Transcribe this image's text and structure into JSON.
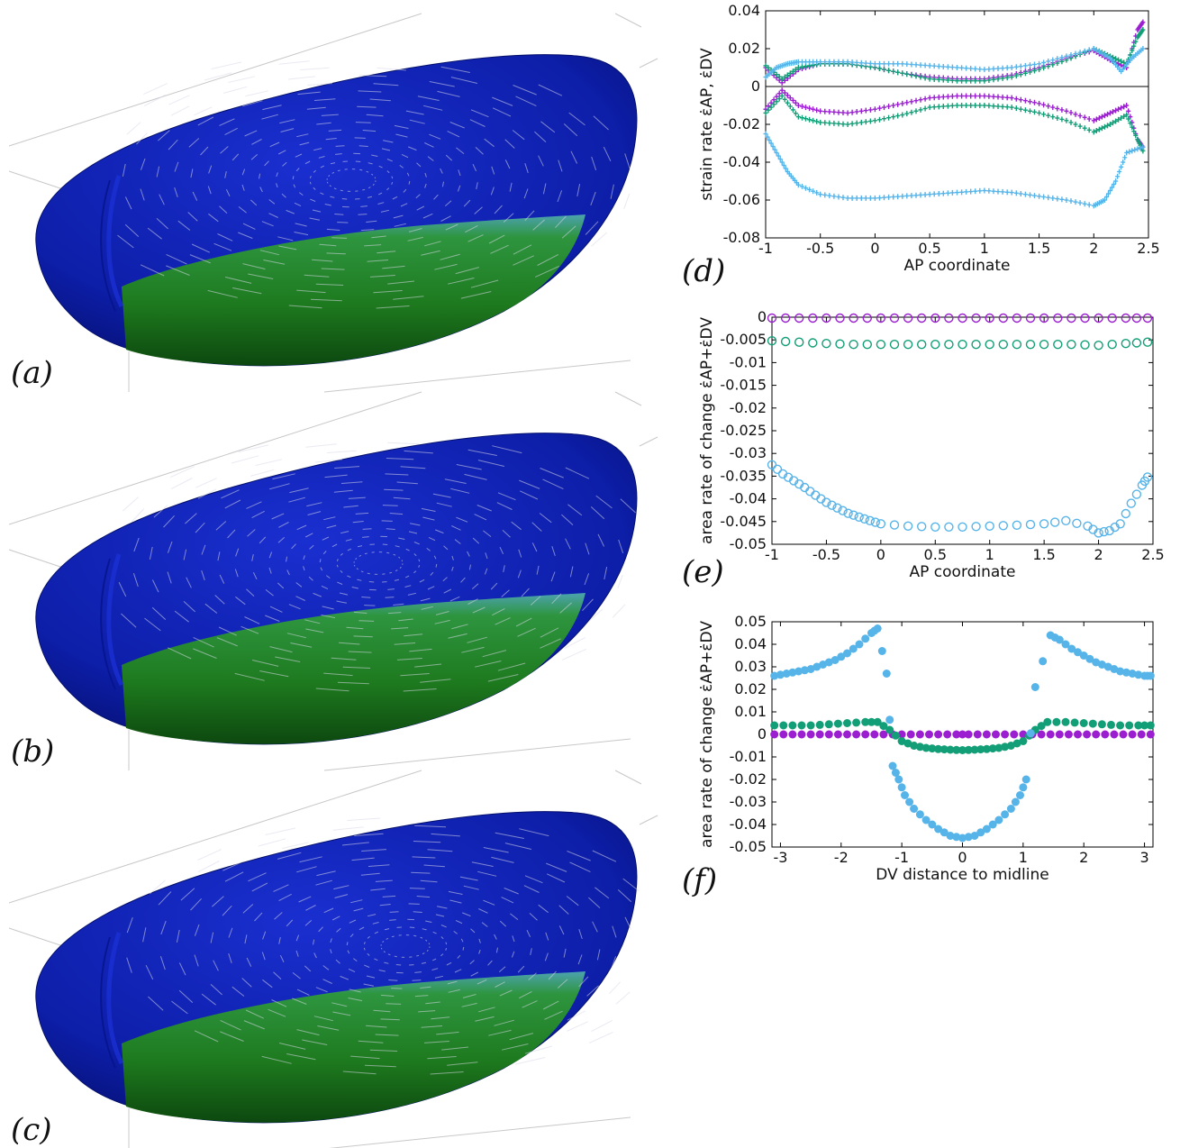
{
  "figure": {
    "panels_3d": [
      {
        "letter": "(a)"
      },
      {
        "letter": "(b)"
      },
      {
        "letter": "(c)"
      }
    ],
    "colors": {
      "dorsal_blue": "#0a1ea8",
      "ventral_green": "#1c7a14",
      "flow_lines": "#d8d8e8",
      "purple": "#9b1fd0",
      "green": "#129e76",
      "skyblue": "#56b4e9"
    }
  },
  "chart_data": [
    {
      "panel": "(d)",
      "type": "scatter",
      "marker": "cross-with-errorbar",
      "xlabel": "AP coordinate",
      "ylabel": "strain rate ε̇AP, ε̇DV",
      "xlim": [
        -1,
        2.5
      ],
      "ylim": [
        -0.08,
        0.04
      ],
      "xticks": [
        -1,
        -0.5,
        0,
        0.5,
        1,
        1.5,
        2,
        2.5
      ],
      "xtick_labels": [
        "-1",
        "-0.5",
        "0",
        "0.5",
        "1",
        "1.5",
        "2",
        "2.5"
      ],
      "yticks": [
        -0.08,
        -0.06,
        -0.04,
        -0.02,
        0,
        0.02,
        0.04
      ],
      "ytick_labels": [
        "-0.08",
        "-0.06",
        "-0.04",
        "-0.02",
        "0",
        "0.02",
        "0.04"
      ],
      "zero_line": true,
      "series": [
        {
          "color": "#9b1fd0",
          "x": [
            -1,
            -0.85,
            -0.7,
            -0.5,
            -0.25,
            0,
            0.25,
            0.5,
            0.75,
            1,
            1.25,
            1.5,
            1.75,
            2,
            2.15,
            2.3,
            2.4,
            2.45
          ],
          "y": [
            0.01,
            0.002,
            0.009,
            0.012,
            0.012,
            0.01,
            0.007,
            0.005,
            0.004,
            0.004,
            0.006,
            0.01,
            0.015,
            0.019,
            0.014,
            0.01,
            0.03,
            0.034
          ]
        },
        {
          "color": "#9b1fd0",
          "x": [
            -1,
            -0.85,
            -0.7,
            -0.5,
            -0.25,
            0,
            0.25,
            0.5,
            0.75,
            1,
            1.25,
            1.5,
            1.75,
            2,
            2.15,
            2.3,
            2.4,
            2.45
          ],
          "y": [
            -0.012,
            -0.002,
            -0.01,
            -0.013,
            -0.014,
            -0.012,
            -0.009,
            -0.006,
            -0.005,
            -0.005,
            -0.006,
            -0.009,
            -0.013,
            -0.018,
            -0.014,
            -0.01,
            -0.028,
            -0.032
          ]
        },
        {
          "color": "#129e76",
          "x": [
            -1,
            -0.85,
            -0.7,
            -0.5,
            -0.25,
            0,
            0.25,
            0.5,
            0.75,
            1,
            1.25,
            1.5,
            1.75,
            2,
            2.15,
            2.3,
            2.4,
            2.45
          ],
          "y": [
            0.011,
            0.004,
            0.01,
            0.012,
            0.012,
            0.01,
            0.007,
            0.004,
            0.003,
            0.003,
            0.005,
            0.009,
            0.014,
            0.02,
            0.016,
            0.012,
            0.026,
            0.03
          ]
        },
        {
          "color": "#129e76",
          "x": [
            -1,
            -0.85,
            -0.7,
            -0.5,
            -0.25,
            0,
            0.25,
            0.5,
            0.75,
            1,
            1.25,
            1.5,
            1.75,
            2,
            2.15,
            2.3,
            2.4,
            2.45
          ],
          "y": [
            -0.014,
            -0.005,
            -0.016,
            -0.019,
            -0.02,
            -0.018,
            -0.015,
            -0.011,
            -0.01,
            -0.01,
            -0.011,
            -0.014,
            -0.018,
            -0.024,
            -0.02,
            -0.015,
            -0.028,
            -0.034
          ]
        },
        {
          "color": "#56b4e9",
          "x": [
            -1,
            -0.9,
            -0.8,
            -0.7,
            -0.5,
            -0.25,
            0,
            0.25,
            0.5,
            0.75,
            1,
            1.25,
            1.5,
            1.75,
            2,
            2.15,
            2.25,
            2.35,
            2.45
          ],
          "y": [
            0.005,
            0.01,
            0.012,
            0.013,
            0.013,
            0.013,
            0.012,
            0.012,
            0.011,
            0.01,
            0.009,
            0.01,
            0.012,
            0.016,
            0.02,
            0.015,
            0.008,
            0.015,
            0.02
          ]
        },
        {
          "color": "#56b4e9",
          "x": [
            -1,
            -0.9,
            -0.8,
            -0.7,
            -0.5,
            -0.25,
            0,
            0.25,
            0.5,
            0.75,
            1,
            1.25,
            1.5,
            1.75,
            2,
            2.1,
            2.2,
            2.3,
            2.45
          ],
          "y": [
            -0.025,
            -0.035,
            -0.045,
            -0.052,
            -0.057,
            -0.059,
            -0.059,
            -0.058,
            -0.057,
            -0.056,
            -0.055,
            -0.056,
            -0.058,
            -0.06,
            -0.063,
            -0.06,
            -0.05,
            -0.035,
            -0.032
          ]
        }
      ]
    },
    {
      "panel": "(e)",
      "type": "scatter",
      "marker": "open-circle",
      "xlabel": "AP coordinate",
      "ylabel": "area rate of change ε̇AP+ε̇DV",
      "xlim": [
        -1,
        2.5
      ],
      "ylim": [
        -0.05,
        0
      ],
      "xticks": [
        -1,
        -0.5,
        0,
        0.5,
        1,
        1.5,
        2,
        2.5
      ],
      "xtick_labels": [
        "-1",
        "-0.5",
        "0",
        "0.5",
        "1",
        "1.5",
        "2",
        "2.5"
      ],
      "yticks": [
        -0.05,
        -0.045,
        -0.04,
        -0.035,
        -0.03,
        -0.025,
        -0.02,
        -0.015,
        -0.01,
        -0.005,
        0
      ],
      "ytick_labels": [
        "-0.05",
        "-0.045",
        "-0.04",
        "-0.035",
        "-0.03",
        "-0.025",
        "-0.02",
        "-0.015",
        "-0.01",
        "-0.005",
        "0"
      ],
      "series": [
        {
          "color": "#9b1fd0",
          "x": [
            -1,
            -0.75,
            -0.5,
            -0.25,
            0,
            0.25,
            0.5,
            0.75,
            1,
            1.25,
            1.5,
            1.75,
            2,
            2.25,
            2.45
          ],
          "y": [
            -0.0002,
            -0.0002,
            -0.0002,
            -0.0002,
            -0.0002,
            -0.0002,
            -0.0002,
            -0.0002,
            -0.0002,
            -0.0002,
            -0.0002,
            -0.0002,
            -0.0002,
            -0.0002,
            -0.0002
          ]
        },
        {
          "color": "#129e76",
          "x": [
            -1,
            -0.75,
            -0.5,
            -0.25,
            0,
            0.25,
            0.5,
            0.75,
            1,
            1.25,
            1.5,
            1.75,
            2,
            2.25,
            2.45
          ],
          "y": [
            -0.0052,
            -0.0055,
            -0.0058,
            -0.006,
            -0.006,
            -0.006,
            -0.006,
            -0.006,
            -0.006,
            -0.006,
            -0.006,
            -0.006,
            -0.0062,
            -0.0058,
            -0.0055
          ]
        },
        {
          "color": "#56b4e9",
          "x": [
            -1,
            -0.9,
            -0.8,
            -0.7,
            -0.6,
            -0.5,
            -0.4,
            -0.3,
            -0.2,
            -0.1,
            0,
            0.25,
            0.5,
            0.75,
            1,
            1.25,
            1.5,
            1.7,
            1.9,
            2,
            2.1,
            2.2,
            2.3,
            2.4,
            2.45
          ],
          "y": [
            -0.0325,
            -0.0345,
            -0.036,
            -0.0375,
            -0.0392,
            -0.0408,
            -0.042,
            -0.0432,
            -0.044,
            -0.0448,
            -0.0455,
            -0.046,
            -0.0462,
            -0.0462,
            -0.046,
            -0.0458,
            -0.0455,
            -0.0448,
            -0.046,
            -0.0475,
            -0.047,
            -0.0455,
            -0.041,
            -0.037,
            -0.0352
          ]
        }
      ]
    },
    {
      "panel": "(f)",
      "type": "scatter",
      "marker": "filled-circle",
      "xlabel": "DV distance to midline",
      "ylabel": "area rate of change ε̇AP+ε̇DV",
      "xlim": [
        -3.14,
        3.14
      ],
      "ylim": [
        -0.05,
        0.05
      ],
      "xticks": [
        -3,
        -2,
        -1,
        0,
        1,
        2,
        3
      ],
      "xtick_labels": [
        "-3",
        "-2",
        "-1",
        "0",
        "1",
        "2",
        "3"
      ],
      "yticks": [
        -0.05,
        -0.04,
        -0.03,
        -0.02,
        -0.01,
        0,
        0.01,
        0.02,
        0.03,
        0.04,
        0.05
      ],
      "ytick_labels": [
        "-0.05",
        "-0.04",
        "-0.03",
        "-0.02",
        "-0.01",
        "0",
        "0.01",
        "0.02",
        "0.03",
        "0.04",
        "0.05"
      ],
      "series": [
        {
          "color": "#9b1fd0",
          "x": [
            -3.1,
            -2.8,
            -2.5,
            -2.2,
            -1.9,
            -1.6,
            -1.3,
            -1.0,
            -0.7,
            -0.4,
            -0.1,
            0.1,
            0.4,
            0.7,
            1.0,
            1.3,
            1.6,
            1.9,
            2.2,
            2.5,
            2.8,
            3.1
          ],
          "y": [
            0,
            0,
            0,
            0,
            0,
            0,
            0,
            0,
            0,
            0,
            0,
            0,
            0,
            0,
            0,
            0,
            0,
            0,
            0,
            0,
            0,
            0
          ]
        },
        {
          "color": "#129e76",
          "x": [
            -3.1,
            -2.8,
            -2.5,
            -2.2,
            -1.9,
            -1.6,
            -1.4,
            -1.2,
            -1.0,
            -0.8,
            -0.6,
            -0.4,
            -0.2,
            0,
            0.2,
            0.4,
            0.6,
            0.8,
            1.0,
            1.2,
            1.4,
            1.7,
            2.0,
            2.3,
            2.6,
            2.9,
            3.1
          ],
          "y": [
            0.004,
            0.004,
            0.004,
            0.0045,
            0.005,
            0.0055,
            0.0055,
            0.002,
            -0.003,
            -0.005,
            -0.006,
            -0.0065,
            -0.0068,
            -0.007,
            -0.0068,
            -0.0065,
            -0.006,
            -0.005,
            -0.003,
            0.002,
            0.0055,
            0.0055,
            0.005,
            0.0045,
            0.004,
            0.004,
            0.004
          ]
        },
        {
          "color": "#56b4e9",
          "x": [
            -3.1,
            -2.9,
            -2.7,
            -2.5,
            -2.3,
            -2.1,
            -1.9,
            -1.7,
            -1.5,
            -1.4,
            -1.25,
            -1.15,
            -1.05,
            -0.95,
            -0.8,
            -0.6,
            -0.4,
            -0.2,
            0,
            0.2,
            0.4,
            0.6,
            0.8,
            0.95,
            1.05,
            1.2,
            1.45,
            1.6,
            1.8,
            2.0,
            2.2,
            2.4,
            2.6,
            2.8,
            3.0,
            3.1
          ],
          "y": [
            0.026,
            0.027,
            0.028,
            0.029,
            0.031,
            0.033,
            0.036,
            0.04,
            0.045,
            0.047,
            0.027,
            -0.014,
            -0.02,
            -0.027,
            -0.033,
            -0.038,
            -0.042,
            -0.045,
            -0.046,
            -0.045,
            -0.042,
            -0.038,
            -0.033,
            -0.027,
            -0.02,
            0.021,
            0.044,
            0.042,
            0.038,
            0.035,
            0.032,
            0.03,
            0.028,
            0.027,
            0.026,
            0.026
          ]
        }
      ]
    }
  ]
}
